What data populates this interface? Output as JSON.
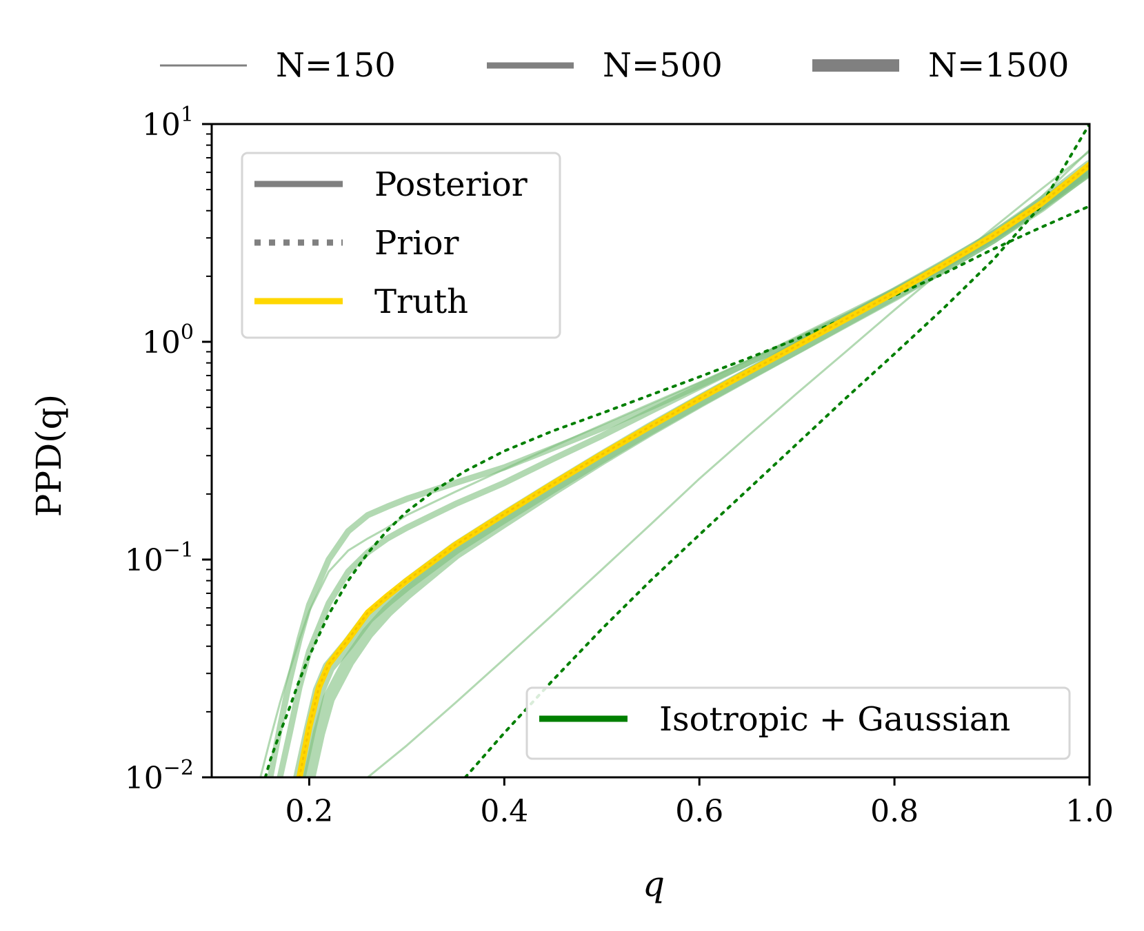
{
  "chart_data": {
    "type": "line",
    "title": "",
    "xlabel": "q",
    "ylabel": "PPD(q)",
    "xscale": "linear",
    "yscale": "log",
    "xlim": [
      0.1,
      1.0
    ],
    "ylim": [
      0.01,
      10
    ],
    "x_ticks": [
      {
        "value": 0.2,
        "label": "0.2"
      },
      {
        "value": 0.4,
        "label": "0.4"
      },
      {
        "value": 0.6,
        "label": "0.6"
      },
      {
        "value": 0.8,
        "label": "0.8"
      },
      {
        "value": 1.0,
        "label": "1.0"
      }
    ],
    "y_ticks": [
      {
        "value": 0.01,
        "base": "10",
        "exp": "−2"
      },
      {
        "value": 0.1,
        "base": "10",
        "exp": "−1"
      },
      {
        "value": 1,
        "base": "10",
        "exp": "0"
      },
      {
        "value": 10,
        "base": "10",
        "exp": "1"
      }
    ],
    "colors": {
      "posterior": "#7fbf7f",
      "prior": "#007f00",
      "truth": "#ffd700",
      "legend_gray": "#808080",
      "model": "#007f00"
    },
    "size_legend": [
      {
        "label": "N=150",
        "line_width": 3
      },
      {
        "label": "N=500",
        "line_width": 9
      },
      {
        "label": "N=1500",
        "line_width": 18
      }
    ],
    "style_legend": [
      {
        "label": "Posterior",
        "style": "solid"
      },
      {
        "label": "Prior",
        "style": "dotted"
      },
      {
        "label": "Truth",
        "style": "truth"
      }
    ],
    "model_legend": {
      "label": "Isotropic + Gaussian"
    },
    "series": [
      {
        "name": "Truth",
        "kind": "truth",
        "line_width": 9,
        "x": [
          0.19,
          0.2,
          0.21,
          0.22,
          0.24,
          0.26,
          0.28,
          0.3,
          0.35,
          0.4,
          0.45,
          0.5,
          0.55,
          0.6,
          0.65,
          0.7,
          0.75,
          0.8,
          0.85,
          0.9,
          0.95,
          1.0
        ],
        "y": [
          0.01,
          0.017,
          0.026,
          0.033,
          0.043,
          0.057,
          0.068,
          0.08,
          0.117,
          0.162,
          0.223,
          0.304,
          0.41,
          0.548,
          0.727,
          0.96,
          1.27,
          1.68,
          2.25,
          3.05,
          4.3,
          6.5
        ]
      },
      {
        "name": "Posterior N=1500 (a)",
        "kind": "posterior",
        "line_width": 18,
        "x": [
          0.19,
          0.2,
          0.21,
          0.22,
          0.24,
          0.26,
          0.28,
          0.3,
          0.35,
          0.4,
          0.45,
          0.5,
          0.55,
          0.6,
          0.65,
          0.7,
          0.75,
          0.8,
          0.85,
          0.9,
          0.95,
          1.0
        ],
        "y": [
          0.01,
          0.016,
          0.025,
          0.032,
          0.041,
          0.054,
          0.065,
          0.077,
          0.113,
          0.157,
          0.216,
          0.295,
          0.4,
          0.535,
          0.71,
          0.94,
          1.25,
          1.66,
          2.22,
          3.0,
          4.2,
          6.2
        ]
      },
      {
        "name": "Posterior N=1500 (b)",
        "kind": "posterior",
        "line_width": 18,
        "x": [
          0.2,
          0.21,
          0.22,
          0.24,
          0.26,
          0.28,
          0.3,
          0.35,
          0.4,
          0.45,
          0.5,
          0.55,
          0.6,
          0.65,
          0.7,
          0.75,
          0.8,
          0.85,
          0.9,
          0.95,
          1.0
        ],
        "y": [
          0.01,
          0.016,
          0.023,
          0.034,
          0.046,
          0.058,
          0.07,
          0.107,
          0.15,
          0.21,
          0.29,
          0.395,
          0.53,
          0.705,
          0.935,
          1.24,
          1.64,
          2.2,
          3.0,
          4.3,
          6.4
        ]
      },
      {
        "name": "Posterior N=500 (a)",
        "kind": "posterior",
        "line_width": 9,
        "x": [
          0.17,
          0.18,
          0.19,
          0.2,
          0.22,
          0.24,
          0.26,
          0.28,
          0.3,
          0.35,
          0.4,
          0.45,
          0.5,
          0.55,
          0.6,
          0.65,
          0.7,
          0.75,
          0.8,
          0.85,
          0.9,
          0.95,
          1.0
        ],
        "y": [
          0.01,
          0.016,
          0.026,
          0.038,
          0.063,
          0.088,
          0.108,
          0.125,
          0.14,
          0.18,
          0.225,
          0.29,
          0.37,
          0.48,
          0.62,
          0.8,
          1.03,
          1.33,
          1.72,
          2.25,
          3.0,
          4.15,
          6.0
        ]
      },
      {
        "name": "Posterior N=500 (b)",
        "kind": "posterior",
        "line_width": 9,
        "x": [
          0.16,
          0.17,
          0.18,
          0.19,
          0.2,
          0.22,
          0.24,
          0.26,
          0.28,
          0.3,
          0.35,
          0.4,
          0.45,
          0.5,
          0.55,
          0.6,
          0.65,
          0.7,
          0.75,
          0.8,
          0.85,
          0.9,
          0.95,
          1.0
        ],
        "y": [
          0.01,
          0.017,
          0.028,
          0.043,
          0.062,
          0.1,
          0.135,
          0.16,
          0.175,
          0.19,
          0.225,
          0.265,
          0.325,
          0.4,
          0.5,
          0.63,
          0.8,
          1.02,
          1.3,
          1.68,
          2.2,
          2.95,
          4.1,
          5.9
        ]
      },
      {
        "name": "Posterior N=150 (a)",
        "kind": "posterior",
        "line_width": 3,
        "x": [
          0.15,
          0.16,
          0.17,
          0.18,
          0.19,
          0.2,
          0.22,
          0.24,
          0.26,
          0.28,
          0.3,
          0.35,
          0.4,
          0.45,
          0.5,
          0.55,
          0.6,
          0.65,
          0.7,
          0.75,
          0.8,
          0.85,
          0.9,
          0.95,
          1.0
        ],
        "y": [
          0.01,
          0.015,
          0.022,
          0.031,
          0.043,
          0.058,
          0.088,
          0.11,
          0.125,
          0.14,
          0.16,
          0.205,
          0.26,
          0.33,
          0.415,
          0.52,
          0.65,
          0.82,
          1.04,
          1.34,
          1.74,
          2.3,
          3.1,
          4.6,
          7.6
        ]
      },
      {
        "name": "Posterior N=150 (b)",
        "kind": "posterior",
        "line_width": 3,
        "x": [
          0.26,
          0.3,
          0.35,
          0.4,
          0.45,
          0.5,
          0.55,
          0.6,
          0.65,
          0.7,
          0.75,
          0.8,
          0.85,
          0.9,
          0.95,
          1.0
        ],
        "y": [
          0.01,
          0.014,
          0.022,
          0.035,
          0.056,
          0.09,
          0.145,
          0.235,
          0.37,
          0.58,
          0.9,
          1.4,
          2.15,
          3.3,
          5.0,
          7.5
        ]
      },
      {
        "name": "Prior (upper)",
        "kind": "prior",
        "line_width": 4,
        "x": [
          0.155,
          0.16,
          0.17,
          0.18,
          0.19,
          0.2,
          0.22,
          0.24,
          0.26,
          0.28,
          0.3,
          0.33,
          0.36,
          0.4,
          0.45,
          0.5,
          0.55,
          0.6,
          0.65,
          0.7,
          0.75,
          0.8,
          0.85,
          0.9,
          0.95,
          1.0
        ],
        "y": [
          0.01,
          0.012,
          0.016,
          0.021,
          0.028,
          0.036,
          0.056,
          0.08,
          0.107,
          0.136,
          0.166,
          0.21,
          0.255,
          0.315,
          0.39,
          0.47,
          0.57,
          0.69,
          0.84,
          1.03,
          1.29,
          1.63,
          2.05,
          2.65,
          3.35,
          4.2
        ]
      },
      {
        "name": "Prior (lower)",
        "kind": "prior",
        "line_width": 4,
        "x": [
          0.36,
          0.4,
          0.45,
          0.5,
          0.55,
          0.6,
          0.65,
          0.7,
          0.75,
          0.8,
          0.85,
          0.9,
          0.95,
          1.0
        ],
        "y": [
          0.01,
          0.016,
          0.028,
          0.048,
          0.08,
          0.13,
          0.21,
          0.34,
          0.55,
          0.88,
          1.42,
          2.35,
          4.2,
          10.0
        ]
      }
    ]
  }
}
